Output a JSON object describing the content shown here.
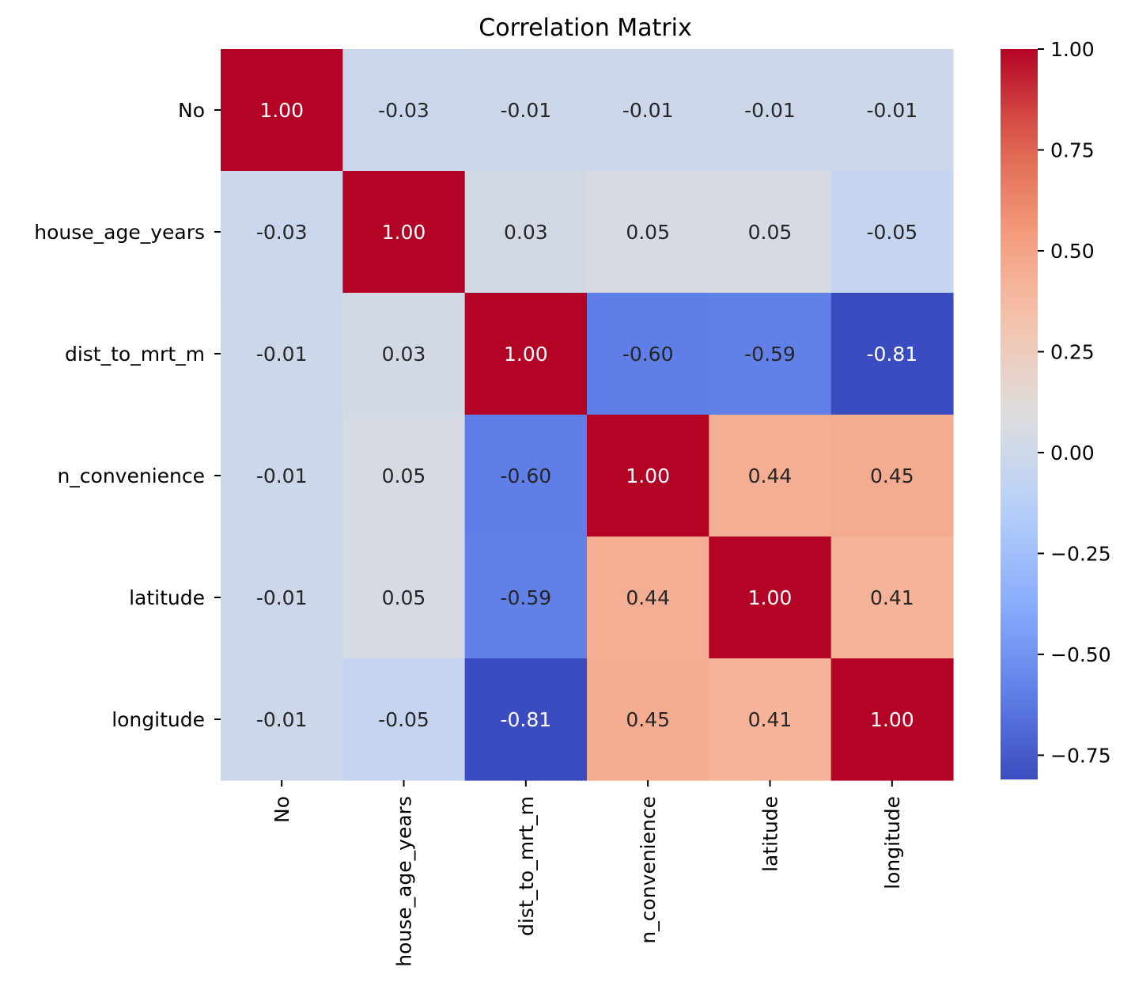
{
  "chart_data": {
    "type": "heatmap",
    "title": "Correlation Matrix",
    "labels": [
      "No",
      "house_age_years",
      "dist_to_mrt_m",
      "n_convenience",
      "latitude",
      "longitude"
    ],
    "matrix": [
      [
        1.0,
        -0.03,
        -0.01,
        -0.01,
        -0.01,
        -0.01
      ],
      [
        -0.03,
        1.0,
        0.03,
        0.05,
        0.05,
        -0.05
      ],
      [
        -0.01,
        0.03,
        1.0,
        -0.6,
        -0.59,
        -0.81
      ],
      [
        -0.01,
        0.05,
        -0.6,
        1.0,
        0.44,
        0.45
      ],
      [
        -0.01,
        0.05,
        -0.59,
        0.44,
        1.0,
        0.41
      ],
      [
        -0.01,
        -0.05,
        -0.81,
        0.45,
        0.41,
        1.0
      ]
    ],
    "annotations": [
      [
        "1.00",
        "-0.03",
        "-0.01",
        "-0.01",
        "-0.01",
        "-0.01"
      ],
      [
        "-0.03",
        "1.00",
        "0.03",
        "0.05",
        "0.05",
        "-0.05"
      ],
      [
        "-0.01",
        "0.03",
        "1.00",
        "-0.60",
        "-0.59",
        "-0.81"
      ],
      [
        "-0.01",
        "0.05",
        "-0.60",
        "1.00",
        "0.44",
        "0.45"
      ],
      [
        "-0.01",
        "0.05",
        "-0.59",
        "0.44",
        "1.00",
        "0.41"
      ],
      [
        "-0.01",
        "-0.05",
        "-0.81",
        "0.45",
        "0.41",
        "1.00"
      ]
    ],
    "colormap": "coolwarm",
    "vmin": -0.81,
    "vmax": 1.0,
    "colorbar": {
      "ticks": [
        1.0,
        0.75,
        0.5,
        0.25,
        0.0,
        -0.25,
        -0.5,
        -0.75
      ],
      "tick_labels": [
        "1.00",
        "0.75",
        "0.50",
        "0.25",
        "0.00",
        "−0.25",
        "−0.50",
        "−0.75"
      ]
    }
  }
}
